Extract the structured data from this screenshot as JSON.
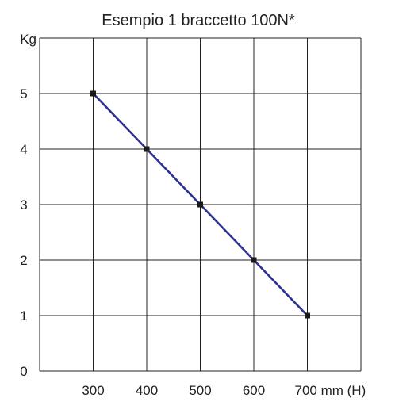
{
  "chart_data": {
    "type": "line",
    "title": "Esempio 1 braccetto 100N*",
    "ylabel": "Kg",
    "x_ticks": [
      "300",
      "400",
      "500",
      "600",
      "700 mm (H)"
    ],
    "y_ticks": [
      "0",
      "1",
      "2",
      "3",
      "4",
      "5"
    ],
    "xlim": [
      200,
      800
    ],
    "ylim": [
      0,
      6
    ],
    "grid": true,
    "series": [
      {
        "x": [
          300,
          400,
          500,
          600,
          700
        ],
        "y": [
          5,
          4,
          3,
          2,
          1
        ]
      }
    ],
    "colors": {
      "line": "#2e3192",
      "marker": "#1a1a1a",
      "grid": "#231f20"
    }
  }
}
